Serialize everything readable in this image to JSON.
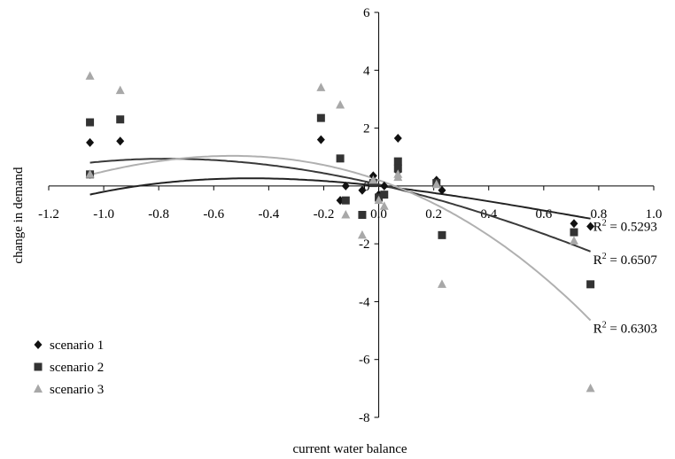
{
  "chart_data": {
    "type": "scatter",
    "xlabel": "current water balance",
    "ylabel": "change in demand",
    "xlim": [
      -1.2,
      1.0
    ],
    "ylim": [
      -8,
      6
    ],
    "x_ticks": [
      "-1.2",
      "-1.0",
      "-0.8",
      "-0.6",
      "-0.4",
      "-0.2",
      "0.0",
      "0.2",
      "0.4",
      "0.6",
      "0.8",
      "1.0"
    ],
    "y_ticks": [
      "-8",
      "-6",
      "-4",
      "-2",
      "0",
      "2",
      "4",
      "6"
    ],
    "grid": false,
    "legend_position": "bottom-left",
    "series": [
      {
        "name": "scenario 1",
        "marker": "diamond",
        "color": "#111111",
        "trend_color": "#222222",
        "r2_label": "R2 = 0.5293",
        "r2_value": "0.5293",
        "trend": [
          0.0,
          -1.05,
          -0.85,
          0.4
        ],
        "points": [
          [
            -1.05,
            1.5
          ],
          [
            -1.05,
            0.4
          ],
          [
            -0.94,
            1.55
          ],
          [
            -0.21,
            1.6
          ],
          [
            -0.14,
            -0.5
          ],
          [
            -0.12,
            0.0
          ],
          [
            -0.06,
            -0.15
          ],
          [
            -0.02,
            0.35
          ],
          [
            0.0,
            -0.3
          ],
          [
            0.02,
            0.0
          ],
          [
            0.07,
            1.65
          ],
          [
            0.07,
            0.5
          ],
          [
            0.21,
            0.2
          ],
          [
            0.23,
            -0.15
          ],
          [
            0.71,
            -1.3
          ],
          [
            0.77,
            -1.4
          ]
        ]
      },
      {
        "name": "scenario 2",
        "marker": "square",
        "color": "#333333",
        "trend_color": "#3a3a3a",
        "r2_label": "R2 = 0.6507",
        "r2_value": "0.6507",
        "trend": [
          0.05,
          -2.2,
          -1.2,
          0.2
        ],
        "points": [
          [
            -1.05,
            2.2
          ],
          [
            -1.05,
            0.4
          ],
          [
            -0.94,
            2.3
          ],
          [
            -0.21,
            2.35
          ],
          [
            -0.14,
            0.95
          ],
          [
            -0.12,
            -0.5
          ],
          [
            -0.06,
            -1.0
          ],
          [
            -0.02,
            0.1
          ],
          [
            0.0,
            -0.4
          ],
          [
            0.02,
            -0.3
          ],
          [
            0.07,
            0.85
          ],
          [
            0.07,
            0.6
          ],
          [
            0.21,
            0.1
          ],
          [
            0.23,
            -1.7
          ],
          [
            0.71,
            -1.6
          ],
          [
            0.77,
            -3.4
          ]
        ]
      },
      {
        "name": "scenario 3",
        "marker": "triangle",
        "color": "#a8a8a8",
        "trend_color": "#b0b0b0",
        "r2_label": "R2 = 0.6303",
        "r2_value": "0.6303",
        "trend": [
          0.2,
          -3.3,
          -3.5,
          -0.5
        ],
        "points": [
          [
            -1.05,
            3.8
          ],
          [
            -1.05,
            0.4
          ],
          [
            -0.94,
            3.3
          ],
          [
            -0.21,
            3.4
          ],
          [
            -0.14,
            2.8
          ],
          [
            -0.12,
            -1.0
          ],
          [
            -0.06,
            -1.7
          ],
          [
            -0.02,
            0.2
          ],
          [
            0.0,
            -0.5
          ],
          [
            0.02,
            -0.7
          ],
          [
            0.07,
            0.3
          ],
          [
            0.07,
            0.4
          ],
          [
            0.21,
            0.05
          ],
          [
            0.23,
            -3.4
          ],
          [
            0.71,
            -1.9
          ],
          [
            0.77,
            -7.0
          ]
        ]
      }
    ]
  }
}
